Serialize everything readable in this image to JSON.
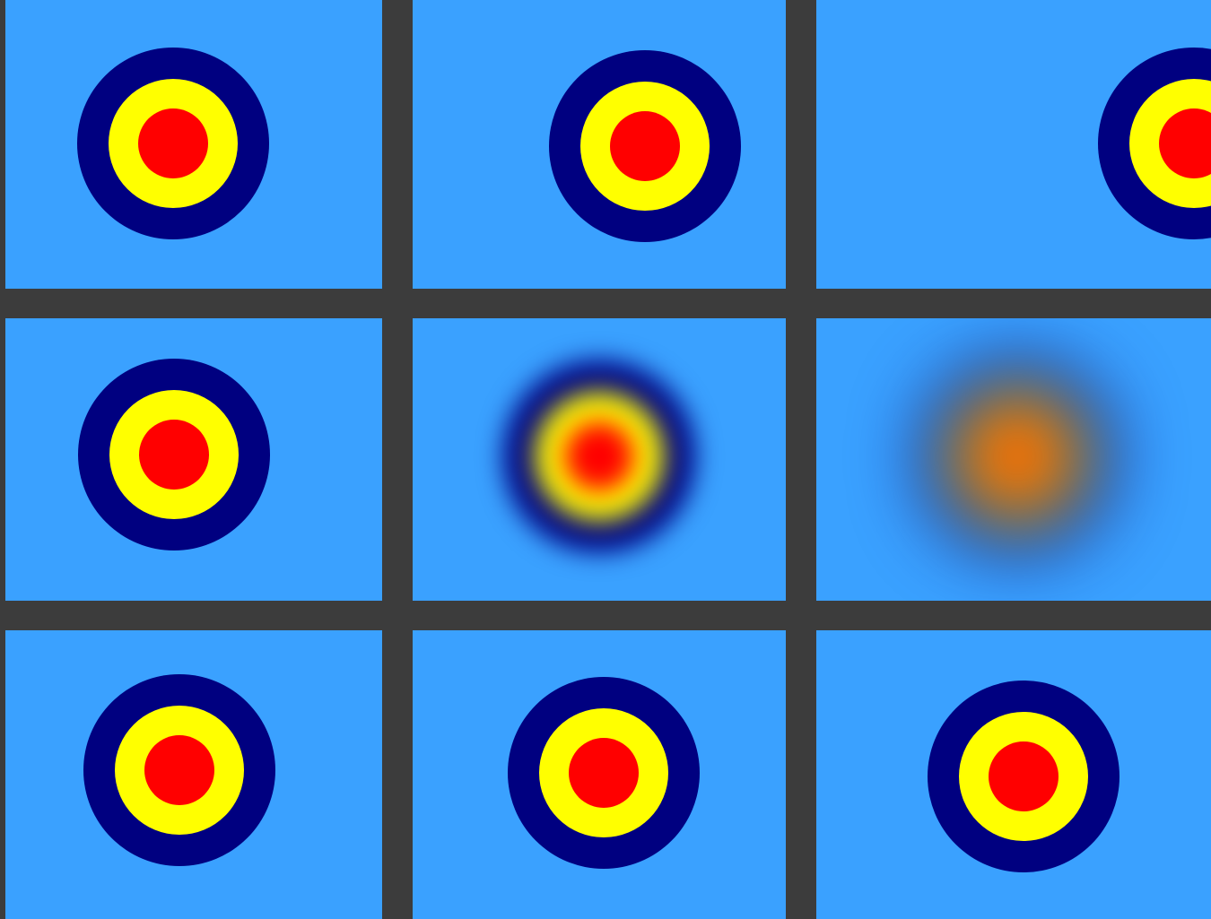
{
  "colors": {
    "background_sky": "#3aa1ff",
    "divider": "#3c3c3c",
    "outer_ring": "#000080",
    "middle_ring": "#ffff00",
    "bullseye": "#ff0000"
  },
  "panels": [
    {
      "id": "r1c1",
      "blur": "none"
    },
    {
      "id": "r1c2",
      "blur": "none"
    },
    {
      "id": "r1c3",
      "blur": "none"
    },
    {
      "id": "r2c1",
      "blur": "none"
    },
    {
      "id": "r2c2",
      "blur": "moderate"
    },
    {
      "id": "r2c3",
      "blur": "strong"
    },
    {
      "id": "r3c1",
      "blur": "none"
    },
    {
      "id": "r3c2",
      "blur": "none"
    },
    {
      "id": "r3c3",
      "blur": "none"
    }
  ]
}
